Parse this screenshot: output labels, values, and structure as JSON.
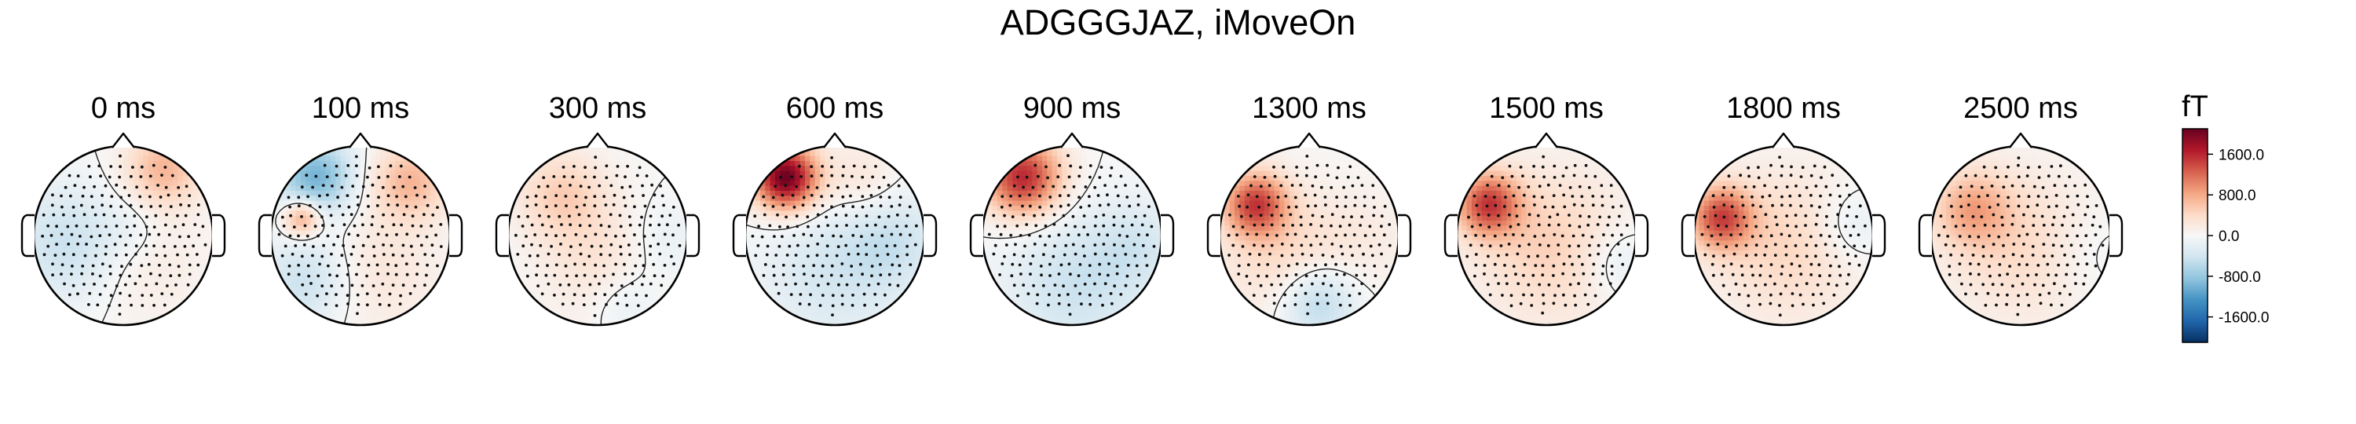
{
  "title": "ADGGGJAZ, iMoveOn",
  "chart_data": {
    "type": "heatmap",
    "title": "ADGGGJAZ, iMoveOn",
    "time_unit": "ms",
    "colorbar": {
      "label": "fT",
      "ticks": [
        "1600.0",
        "800.0",
        "0.0",
        "-800.0",
        "-1600.0"
      ],
      "tick_values": [
        1600,
        800,
        0,
        -800,
        -1600
      ],
      "vmin": -2100,
      "vmax": 2100,
      "colormap": "RdBu_r"
    },
    "topomaps": [
      {
        "time": "0 ms",
        "sources": [
          [
            0.45,
            -0.75,
            700,
            0.3
          ],
          [
            -0.6,
            0.1,
            -500,
            0.45
          ],
          [
            0.2,
            0.3,
            200,
            0.5
          ],
          [
            0.1,
            -0.1,
            -150,
            0.25
          ]
        ]
      },
      {
        "time": "100 ms",
        "sources": [
          [
            -0.65,
            -0.2,
            950,
            0.15
          ],
          [
            0.55,
            -0.6,
            700,
            0.3
          ],
          [
            -0.5,
            -0.65,
            -1000,
            0.3
          ],
          [
            -0.6,
            0.5,
            -500,
            0.35
          ],
          [
            0.2,
            0.4,
            250,
            0.5
          ]
        ]
      },
      {
        "time": "300 ms",
        "sources": [
          [
            -0.4,
            -0.45,
            500,
            0.35
          ],
          [
            0.15,
            0.35,
            350,
            0.5
          ],
          [
            0.7,
            0.1,
            -250,
            0.35
          ],
          [
            0.3,
            0.75,
            -300,
            0.3
          ]
        ]
      },
      {
        "time": "600 ms",
        "sources": [
          [
            -0.55,
            -0.65,
            2100,
            0.25
          ],
          [
            -0.05,
            0.45,
            -350,
            0.55
          ],
          [
            0.65,
            0.05,
            -400,
            0.4
          ],
          [
            0.3,
            -0.6,
            300,
            0.3
          ]
        ]
      },
      {
        "time": "900 ms",
        "sources": [
          [
            -0.55,
            -0.65,
            1600,
            0.3
          ],
          [
            0.05,
            0.55,
            -450,
            0.55
          ],
          [
            0.75,
            0.1,
            -300,
            0.35
          ]
        ]
      },
      {
        "time": "1300 ms",
        "sources": [
          [
            -0.6,
            -0.35,
            1350,
            0.25
          ],
          [
            0.1,
            0.75,
            -650,
            0.3
          ],
          [
            -0.3,
            0.2,
            400,
            0.5
          ],
          [
            0.65,
            0.0,
            150,
            0.4
          ]
        ]
      },
      {
        "time": "1500 ms",
        "sources": [
          [
            -0.65,
            -0.35,
            1350,
            0.25
          ],
          [
            0.05,
            0.1,
            500,
            0.6
          ],
          [
            0.8,
            0.3,
            -300,
            0.3
          ]
        ]
      },
      {
        "time": "1800 ms",
        "sources": [
          [
            -0.7,
            -0.2,
            1300,
            0.25
          ],
          [
            0.05,
            0.1,
            450,
            0.6
          ],
          [
            0.75,
            -0.1,
            -300,
            0.3
          ]
        ]
      },
      {
        "time": "2500 ms",
        "sources": [
          [
            -0.55,
            -0.3,
            700,
            0.3
          ],
          [
            0.0,
            0.1,
            400,
            0.6
          ],
          [
            0.75,
            0.2,
            -150,
            0.35
          ]
        ]
      }
    ]
  }
}
